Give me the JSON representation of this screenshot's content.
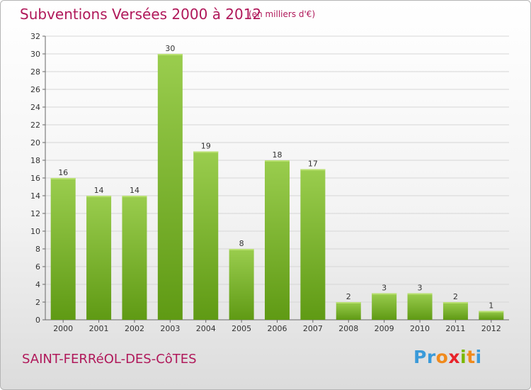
{
  "header": {
    "title": "Subventions Versées 2000 à 2012",
    "unit": "(en milliers d'€)"
  },
  "footer": {
    "commune": "SAINT-FERRéOL-DES-CôTES",
    "logo_letters": [
      "P",
      "r",
      "o",
      "x",
      "i",
      "t",
      "i"
    ],
    "logo_colors": [
      "#3a9ad9",
      "#3a9ad9",
      "#f08a1c",
      "#e8232a",
      "#7ab800",
      "#f08a1c",
      "#3a9ad9"
    ]
  },
  "chart_data": {
    "type": "bar",
    "categories": [
      "2000",
      "2001",
      "2002",
      "2003",
      "2004",
      "2005",
      "2006",
      "2007",
      "2008",
      "2009",
      "2010",
      "2011",
      "2012"
    ],
    "values": [
      16,
      14,
      14,
      30,
      19,
      8,
      18,
      17,
      2,
      3,
      3,
      2,
      1
    ],
    "value_labels": [
      "16",
      "14",
      "14",
      "30",
      "19",
      "8",
      "18",
      "17",
      "2",
      "3",
      "3",
      "2",
      "1"
    ],
    "y_ticks": [
      "0",
      "2",
      "4",
      "6",
      "8",
      "10",
      "12",
      "14",
      "16",
      "18",
      "20",
      "22",
      "24",
      "26",
      "28",
      "30",
      "32"
    ],
    "ylim": [
      0,
      32
    ],
    "grid": true,
    "bar_color_top": "#9acd4e",
    "bar_color_bottom": "#5f9a14"
  }
}
